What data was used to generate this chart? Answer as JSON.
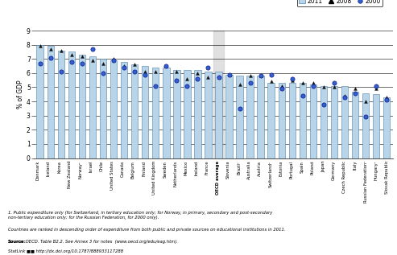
{
  "ylabel": "% of GDP",
  "ylim": [
    0,
    9
  ],
  "yticks": [
    0,
    1,
    2,
    3,
    4,
    5,
    6,
    7,
    8,
    9
  ],
  "countries": [
    "Denmark",
    "Iceland",
    "Korea",
    "New Zealand",
    "Norway¹",
    "Israel",
    "Chile",
    "United States",
    "Canada",
    "Belgium",
    "Finland",
    "United Kingdom",
    "Sweden",
    "Netherlands",
    "Mexico",
    "Ireland",
    "France",
    "OECD average",
    "Slovenia",
    "Brazil¹",
    "Australia",
    "Austria",
    "Switzerland¹",
    "Estonia",
    "Portugal",
    "Spain",
    "Poland",
    "Japan",
    "Germany",
    "Czech Republic",
    "Italy",
    "Russian Federation¹",
    "Hungary¹",
    "Slovak Republic"
  ],
  "values_2011": [
    8.0,
    7.9,
    7.6,
    7.5,
    7.3,
    7.2,
    7.0,
    6.9,
    6.8,
    6.6,
    6.5,
    6.4,
    6.4,
    6.2,
    6.2,
    6.2,
    6.1,
    6.1,
    5.9,
    5.8,
    5.8,
    5.8,
    5.3,
    5.3,
    5.3,
    5.3,
    5.2,
    5.1,
    5.1,
    5.1,
    4.7,
    4.6,
    4.5,
    4.3
  ],
  "values_2008": [
    7.9,
    7.7,
    7.6,
    7.3,
    7.2,
    6.9,
    6.7,
    7.0,
    6.5,
    6.6,
    6.1,
    6.1,
    6.5,
    6.1,
    5.6,
    6.0,
    5.7,
    5.7,
    5.9,
    5.2,
    5.8,
    5.8,
    5.4,
    5.1,
    5.5,
    5.3,
    5.3,
    5.0,
    5.0,
    4.4,
    4.9,
    4.0,
    4.9,
    4.3
  ],
  "values_2000": [
    6.7,
    7.1,
    6.1,
    6.8,
    6.7,
    7.7,
    6.0,
    6.9,
    6.4,
    6.1,
    5.9,
    5.1,
    6.5,
    5.5,
    5.1,
    5.6,
    6.4,
    5.7,
    5.9,
    3.5,
    5.3,
    5.8,
    5.9,
    4.9,
    5.6,
    4.4,
    5.1,
    3.8,
    5.3,
    4.3,
    4.6,
    2.9,
    5.1,
    4.1
  ],
  "bar_color": "#b8d4e8",
  "bar_edge_color": "#5080a8",
  "triangle_color": "#111111",
  "circle_color": "#3060c8",
  "circle_edge_color": "#00008b",
  "oecd_avg_index": 17,
  "oecd_bg_color": "#cccccc",
  "footnote_line1": "1. Public expenditure only (for Switzerland, in tertiary education only; for Norway, in primary, secondary and post-secondary",
  "footnote_line2": "non-tertiary education only; for the Russian Federation, for 2000 only).",
  "footnote_line3": "Countries are ranked in descending order of expenditure from both public and private sources on educational institutions in 2011.",
  "footnote_line4": "Source: OECD. Table B2.2. See Annex 3 for notes  (www.oecd.org/edu/eag.htm).",
  "footnote_line5": "StatLink ■■ http://dx.doi.org/10.1787/888933117288"
}
